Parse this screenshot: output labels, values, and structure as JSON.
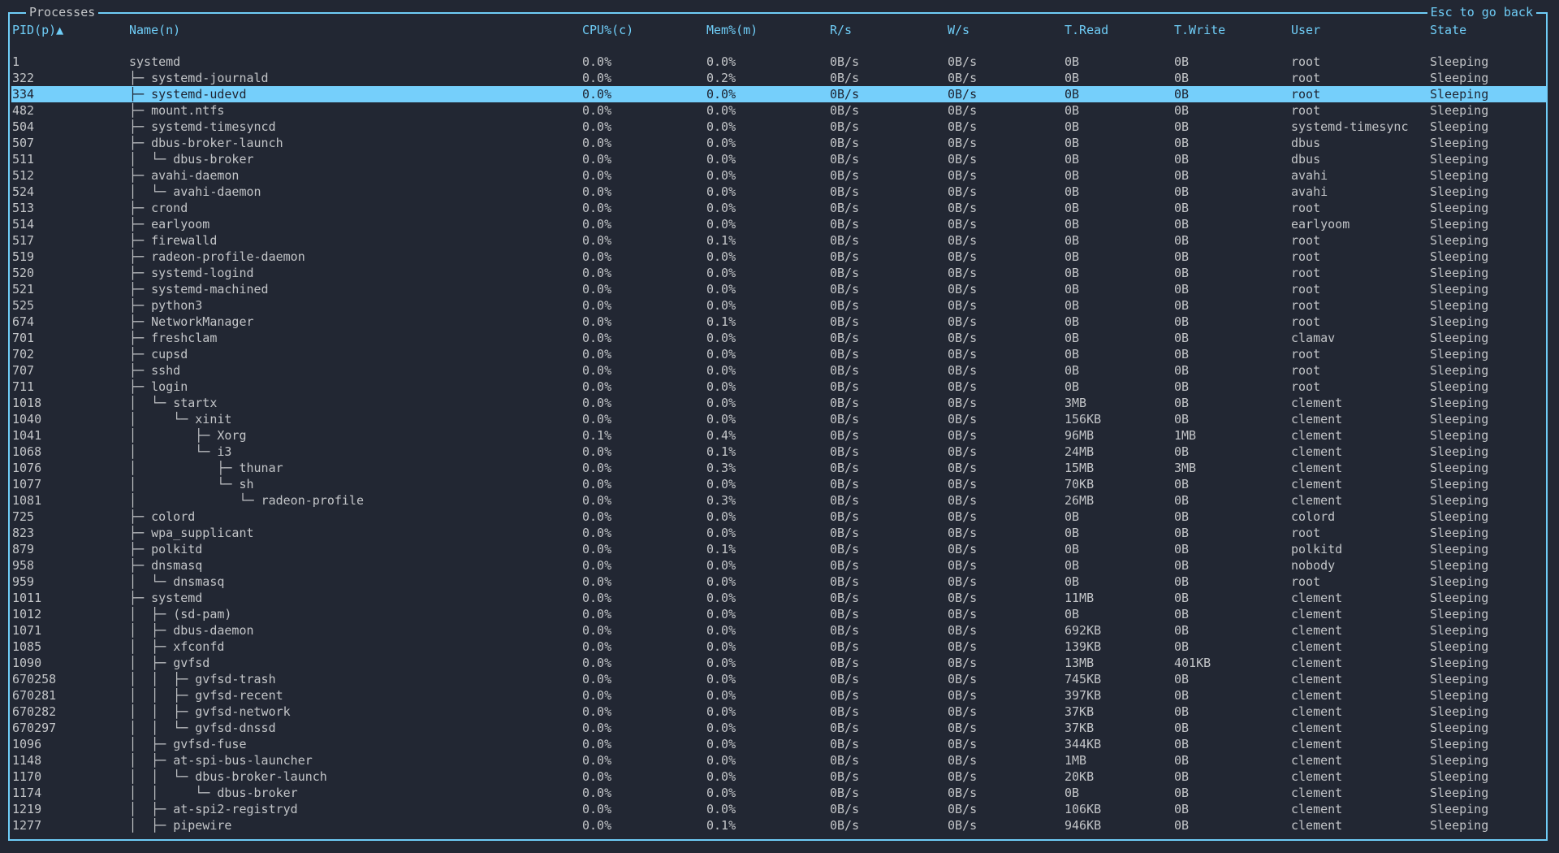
{
  "panel": {
    "title": "Processes",
    "back_hint": "Esc to go back"
  },
  "colors": {
    "background": "#222733",
    "accent": "#6fcdf7",
    "selected_row": "#75cffb",
    "text": "#c3c5c8"
  },
  "columns": [
    "PID(p)▲",
    "Name(n)",
    "CPU%(c)",
    "Mem%(m)",
    "R/s",
    "W/s",
    "T.Read",
    "T.Write",
    "User",
    "State"
  ],
  "selected_pid": "334",
  "rows": [
    {
      "pid": "1",
      "tree": "",
      "name": "systemd",
      "cpu": "0.0%",
      "mem": "0.0%",
      "rs": "0B/s",
      "ws": "0B/s",
      "tread": "0B",
      "twrite": "0B",
      "user": "root",
      "state": "Sleeping"
    },
    {
      "pid": "322",
      "tree": "├─ ",
      "name": "systemd-journald",
      "cpu": "0.0%",
      "mem": "0.2%",
      "rs": "0B/s",
      "ws": "0B/s",
      "tread": "0B",
      "twrite": "0B",
      "user": "root",
      "state": "Sleeping"
    },
    {
      "pid": "334",
      "tree": "├─ ",
      "name": "systemd-udevd",
      "cpu": "0.0%",
      "mem": "0.0%",
      "rs": "0B/s",
      "ws": "0B/s",
      "tread": "0B",
      "twrite": "0B",
      "user": "root",
      "state": "Sleeping"
    },
    {
      "pid": "482",
      "tree": "├─ ",
      "name": "mount.ntfs",
      "cpu": "0.0%",
      "mem": "0.0%",
      "rs": "0B/s",
      "ws": "0B/s",
      "tread": "0B",
      "twrite": "0B",
      "user": "root",
      "state": "Sleeping"
    },
    {
      "pid": "504",
      "tree": "├─ ",
      "name": "systemd-timesyncd",
      "cpu": "0.0%",
      "mem": "0.0%",
      "rs": "0B/s",
      "ws": "0B/s",
      "tread": "0B",
      "twrite": "0B",
      "user": "systemd-timesync",
      "state": "Sleeping"
    },
    {
      "pid": "507",
      "tree": "├─ ",
      "name": "dbus-broker-launch",
      "cpu": "0.0%",
      "mem": "0.0%",
      "rs": "0B/s",
      "ws": "0B/s",
      "tread": "0B",
      "twrite": "0B",
      "user": "dbus",
      "state": "Sleeping"
    },
    {
      "pid": "511",
      "tree": "│  └─ ",
      "name": "dbus-broker",
      "cpu": "0.0%",
      "mem": "0.0%",
      "rs": "0B/s",
      "ws": "0B/s",
      "tread": "0B",
      "twrite": "0B",
      "user": "dbus",
      "state": "Sleeping"
    },
    {
      "pid": "512",
      "tree": "├─ ",
      "name": "avahi-daemon",
      "cpu": "0.0%",
      "mem": "0.0%",
      "rs": "0B/s",
      "ws": "0B/s",
      "tread": "0B",
      "twrite": "0B",
      "user": "avahi",
      "state": "Sleeping"
    },
    {
      "pid": "524",
      "tree": "│  └─ ",
      "name": "avahi-daemon",
      "cpu": "0.0%",
      "mem": "0.0%",
      "rs": "0B/s",
      "ws": "0B/s",
      "tread": "0B",
      "twrite": "0B",
      "user": "avahi",
      "state": "Sleeping"
    },
    {
      "pid": "513",
      "tree": "├─ ",
      "name": "crond",
      "cpu": "0.0%",
      "mem": "0.0%",
      "rs": "0B/s",
      "ws": "0B/s",
      "tread": "0B",
      "twrite": "0B",
      "user": "root",
      "state": "Sleeping"
    },
    {
      "pid": "514",
      "tree": "├─ ",
      "name": "earlyoom",
      "cpu": "0.0%",
      "mem": "0.0%",
      "rs": "0B/s",
      "ws": "0B/s",
      "tread": "0B",
      "twrite": "0B",
      "user": "earlyoom",
      "state": "Sleeping"
    },
    {
      "pid": "517",
      "tree": "├─ ",
      "name": "firewalld",
      "cpu": "0.0%",
      "mem": "0.1%",
      "rs": "0B/s",
      "ws": "0B/s",
      "tread": "0B",
      "twrite": "0B",
      "user": "root",
      "state": "Sleeping"
    },
    {
      "pid": "519",
      "tree": "├─ ",
      "name": "radeon-profile-daemon",
      "cpu": "0.0%",
      "mem": "0.0%",
      "rs": "0B/s",
      "ws": "0B/s",
      "tread": "0B",
      "twrite": "0B",
      "user": "root",
      "state": "Sleeping"
    },
    {
      "pid": "520",
      "tree": "├─ ",
      "name": "systemd-logind",
      "cpu": "0.0%",
      "mem": "0.0%",
      "rs": "0B/s",
      "ws": "0B/s",
      "tread": "0B",
      "twrite": "0B",
      "user": "root",
      "state": "Sleeping"
    },
    {
      "pid": "521",
      "tree": "├─ ",
      "name": "systemd-machined",
      "cpu": "0.0%",
      "mem": "0.0%",
      "rs": "0B/s",
      "ws": "0B/s",
      "tread": "0B",
      "twrite": "0B",
      "user": "root",
      "state": "Sleeping"
    },
    {
      "pid": "525",
      "tree": "├─ ",
      "name": "python3",
      "cpu": "0.0%",
      "mem": "0.0%",
      "rs": "0B/s",
      "ws": "0B/s",
      "tread": "0B",
      "twrite": "0B",
      "user": "root",
      "state": "Sleeping"
    },
    {
      "pid": "674",
      "tree": "├─ ",
      "name": "NetworkManager",
      "cpu": "0.0%",
      "mem": "0.1%",
      "rs": "0B/s",
      "ws": "0B/s",
      "tread": "0B",
      "twrite": "0B",
      "user": "root",
      "state": "Sleeping"
    },
    {
      "pid": "701",
      "tree": "├─ ",
      "name": "freshclam",
      "cpu": "0.0%",
      "mem": "0.0%",
      "rs": "0B/s",
      "ws": "0B/s",
      "tread": "0B",
      "twrite": "0B",
      "user": "clamav",
      "state": "Sleeping"
    },
    {
      "pid": "702",
      "tree": "├─ ",
      "name": "cupsd",
      "cpu": "0.0%",
      "mem": "0.0%",
      "rs": "0B/s",
      "ws": "0B/s",
      "tread": "0B",
      "twrite": "0B",
      "user": "root",
      "state": "Sleeping"
    },
    {
      "pid": "707",
      "tree": "├─ ",
      "name": "sshd",
      "cpu": "0.0%",
      "mem": "0.0%",
      "rs": "0B/s",
      "ws": "0B/s",
      "tread": "0B",
      "twrite": "0B",
      "user": "root",
      "state": "Sleeping"
    },
    {
      "pid": "711",
      "tree": "├─ ",
      "name": "login",
      "cpu": "0.0%",
      "mem": "0.0%",
      "rs": "0B/s",
      "ws": "0B/s",
      "tread": "0B",
      "twrite": "0B",
      "user": "root",
      "state": "Sleeping"
    },
    {
      "pid": "1018",
      "tree": "│  └─ ",
      "name": "startx",
      "cpu": "0.0%",
      "mem": "0.0%",
      "rs": "0B/s",
      "ws": "0B/s",
      "tread": "3MB",
      "twrite": "0B",
      "user": "clement",
      "state": "Sleeping"
    },
    {
      "pid": "1040",
      "tree": "│     └─ ",
      "name": "xinit",
      "cpu": "0.0%",
      "mem": "0.0%",
      "rs": "0B/s",
      "ws": "0B/s",
      "tread": "156KB",
      "twrite": "0B",
      "user": "clement",
      "state": "Sleeping"
    },
    {
      "pid": "1041",
      "tree": "│        ├─ ",
      "name": "Xorg",
      "cpu": "0.1%",
      "mem": "0.4%",
      "rs": "0B/s",
      "ws": "0B/s",
      "tread": "96MB",
      "twrite": "1MB",
      "user": "clement",
      "state": "Sleeping"
    },
    {
      "pid": "1068",
      "tree": "│        └─ ",
      "name": "i3",
      "cpu": "0.0%",
      "mem": "0.1%",
      "rs": "0B/s",
      "ws": "0B/s",
      "tread": "24MB",
      "twrite": "0B",
      "user": "clement",
      "state": "Sleeping"
    },
    {
      "pid": "1076",
      "tree": "│           ├─ ",
      "name": "thunar",
      "cpu": "0.0%",
      "mem": "0.3%",
      "rs": "0B/s",
      "ws": "0B/s",
      "tread": "15MB",
      "twrite": "3MB",
      "user": "clement",
      "state": "Sleeping"
    },
    {
      "pid": "1077",
      "tree": "│           └─ ",
      "name": "sh",
      "cpu": "0.0%",
      "mem": "0.0%",
      "rs": "0B/s",
      "ws": "0B/s",
      "tread": "70KB",
      "twrite": "0B",
      "user": "clement",
      "state": "Sleeping"
    },
    {
      "pid": "1081",
      "tree": "│              └─ ",
      "name": "radeon-profile",
      "cpu": "0.0%",
      "mem": "0.3%",
      "rs": "0B/s",
      "ws": "0B/s",
      "tread": "26MB",
      "twrite": "0B",
      "user": "clement",
      "state": "Sleeping"
    },
    {
      "pid": "725",
      "tree": "├─ ",
      "name": "colord",
      "cpu": "0.0%",
      "mem": "0.0%",
      "rs": "0B/s",
      "ws": "0B/s",
      "tread": "0B",
      "twrite": "0B",
      "user": "colord",
      "state": "Sleeping"
    },
    {
      "pid": "823",
      "tree": "├─ ",
      "name": "wpa_supplicant",
      "cpu": "0.0%",
      "mem": "0.0%",
      "rs": "0B/s",
      "ws": "0B/s",
      "tread": "0B",
      "twrite": "0B",
      "user": "root",
      "state": "Sleeping"
    },
    {
      "pid": "879",
      "tree": "├─ ",
      "name": "polkitd",
      "cpu": "0.0%",
      "mem": "0.1%",
      "rs": "0B/s",
      "ws": "0B/s",
      "tread": "0B",
      "twrite": "0B",
      "user": "polkitd",
      "state": "Sleeping"
    },
    {
      "pid": "958",
      "tree": "├─ ",
      "name": "dnsmasq",
      "cpu": "0.0%",
      "mem": "0.0%",
      "rs": "0B/s",
      "ws": "0B/s",
      "tread": "0B",
      "twrite": "0B",
      "user": "nobody",
      "state": "Sleeping"
    },
    {
      "pid": "959",
      "tree": "│  └─ ",
      "name": "dnsmasq",
      "cpu": "0.0%",
      "mem": "0.0%",
      "rs": "0B/s",
      "ws": "0B/s",
      "tread": "0B",
      "twrite": "0B",
      "user": "root",
      "state": "Sleeping"
    },
    {
      "pid": "1011",
      "tree": "├─ ",
      "name": "systemd",
      "cpu": "0.0%",
      "mem": "0.0%",
      "rs": "0B/s",
      "ws": "0B/s",
      "tread": "11MB",
      "twrite": "0B",
      "user": "clement",
      "state": "Sleeping"
    },
    {
      "pid": "1012",
      "tree": "│  ├─ ",
      "name": "(sd-pam)",
      "cpu": "0.0%",
      "mem": "0.0%",
      "rs": "0B/s",
      "ws": "0B/s",
      "tread": "0B",
      "twrite": "0B",
      "user": "clement",
      "state": "Sleeping"
    },
    {
      "pid": "1071",
      "tree": "│  ├─ ",
      "name": "dbus-daemon",
      "cpu": "0.0%",
      "mem": "0.0%",
      "rs": "0B/s",
      "ws": "0B/s",
      "tread": "692KB",
      "twrite": "0B",
      "user": "clement",
      "state": "Sleeping"
    },
    {
      "pid": "1085",
      "tree": "│  ├─ ",
      "name": "xfconfd",
      "cpu": "0.0%",
      "mem": "0.0%",
      "rs": "0B/s",
      "ws": "0B/s",
      "tread": "139KB",
      "twrite": "0B",
      "user": "clement",
      "state": "Sleeping"
    },
    {
      "pid": "1090",
      "tree": "│  ├─ ",
      "name": "gvfsd",
      "cpu": "0.0%",
      "mem": "0.0%",
      "rs": "0B/s",
      "ws": "0B/s",
      "tread": "13MB",
      "twrite": "401KB",
      "user": "clement",
      "state": "Sleeping"
    },
    {
      "pid": "670258",
      "tree": "│  │  ├─ ",
      "name": "gvfsd-trash",
      "cpu": "0.0%",
      "mem": "0.0%",
      "rs": "0B/s",
      "ws": "0B/s",
      "tread": "745KB",
      "twrite": "0B",
      "user": "clement",
      "state": "Sleeping"
    },
    {
      "pid": "670281",
      "tree": "│  │  ├─ ",
      "name": "gvfsd-recent",
      "cpu": "0.0%",
      "mem": "0.0%",
      "rs": "0B/s",
      "ws": "0B/s",
      "tread": "397KB",
      "twrite": "0B",
      "user": "clement",
      "state": "Sleeping"
    },
    {
      "pid": "670282",
      "tree": "│  │  ├─ ",
      "name": "gvfsd-network",
      "cpu": "0.0%",
      "mem": "0.0%",
      "rs": "0B/s",
      "ws": "0B/s",
      "tread": "37KB",
      "twrite": "0B",
      "user": "clement",
      "state": "Sleeping"
    },
    {
      "pid": "670297",
      "tree": "│  │  └─ ",
      "name": "gvfsd-dnssd",
      "cpu": "0.0%",
      "mem": "0.0%",
      "rs": "0B/s",
      "ws": "0B/s",
      "tread": "37KB",
      "twrite": "0B",
      "user": "clement",
      "state": "Sleeping"
    },
    {
      "pid": "1096",
      "tree": "│  ├─ ",
      "name": "gvfsd-fuse",
      "cpu": "0.0%",
      "mem": "0.0%",
      "rs": "0B/s",
      "ws": "0B/s",
      "tread": "344KB",
      "twrite": "0B",
      "user": "clement",
      "state": "Sleeping"
    },
    {
      "pid": "1148",
      "tree": "│  ├─ ",
      "name": "at-spi-bus-launcher",
      "cpu": "0.0%",
      "mem": "0.0%",
      "rs": "0B/s",
      "ws": "0B/s",
      "tread": "1MB",
      "twrite": "0B",
      "user": "clement",
      "state": "Sleeping"
    },
    {
      "pid": "1170",
      "tree": "│  │  └─ ",
      "name": "dbus-broker-launch",
      "cpu": "0.0%",
      "mem": "0.0%",
      "rs": "0B/s",
      "ws": "0B/s",
      "tread": "20KB",
      "twrite": "0B",
      "user": "clement",
      "state": "Sleeping"
    },
    {
      "pid": "1174",
      "tree": "│  │     └─ ",
      "name": "dbus-broker",
      "cpu": "0.0%",
      "mem": "0.0%",
      "rs": "0B/s",
      "ws": "0B/s",
      "tread": "0B",
      "twrite": "0B",
      "user": "clement",
      "state": "Sleeping"
    },
    {
      "pid": "1219",
      "tree": "│  ├─ ",
      "name": "at-spi2-registryd",
      "cpu": "0.0%",
      "mem": "0.0%",
      "rs": "0B/s",
      "ws": "0B/s",
      "tread": "106KB",
      "twrite": "0B",
      "user": "clement",
      "state": "Sleeping"
    },
    {
      "pid": "1277",
      "tree": "│  ├─ ",
      "name": "pipewire",
      "cpu": "0.0%",
      "mem": "0.1%",
      "rs": "0B/s",
      "ws": "0B/s",
      "tread": "946KB",
      "twrite": "0B",
      "user": "clement",
      "state": "Sleeping"
    }
  ]
}
